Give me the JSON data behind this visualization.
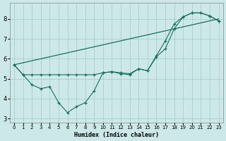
{
  "xlabel": "Humidex (Indice chaleur)",
  "bg_color": "#cce8e8",
  "grid_color": "#aacece",
  "line_color": "#1a6e5e",
  "xlim": [
    -0.5,
    23.5
  ],
  "ylim": [
    2.8,
    8.8
  ],
  "xticks": [
    0,
    1,
    2,
    3,
    4,
    5,
    6,
    7,
    8,
    9,
    10,
    11,
    12,
    13,
    14,
    15,
    16,
    17,
    18,
    19,
    20,
    21,
    22,
    23
  ],
  "yticks": [
    3,
    4,
    5,
    6,
    7,
    8
  ],
  "line1_x": [
    0,
    23
  ],
  "line1_y": [
    5.7,
    8.0
  ],
  "line2_x": [
    0,
    1,
    2,
    3,
    4,
    5,
    6,
    7,
    8,
    9,
    10,
    11,
    12,
    13,
    14,
    15,
    16,
    17,
    18,
    19,
    20,
    21,
    22,
    23
  ],
  "line2_y": [
    5.7,
    5.2,
    4.7,
    4.5,
    4.6,
    3.8,
    3.3,
    3.6,
    3.8,
    4.4,
    5.3,
    5.35,
    5.25,
    5.2,
    5.5,
    5.4,
    6.1,
    6.5,
    7.5,
    8.1,
    8.3,
    8.3,
    8.15,
    7.9
  ],
  "line3_x": [
    0,
    1,
    2,
    3,
    4,
    5,
    6,
    7,
    8,
    9,
    10,
    11,
    12,
    13,
    14,
    15,
    16,
    17,
    18,
    19,
    20,
    21,
    22,
    23
  ],
  "line3_y": [
    5.7,
    5.2,
    5.2,
    5.2,
    5.2,
    5.2,
    5.2,
    5.2,
    5.2,
    5.2,
    5.3,
    5.35,
    5.3,
    5.25,
    5.5,
    5.4,
    6.15,
    6.9,
    7.75,
    8.1,
    8.3,
    8.3,
    8.15,
    7.9
  ]
}
